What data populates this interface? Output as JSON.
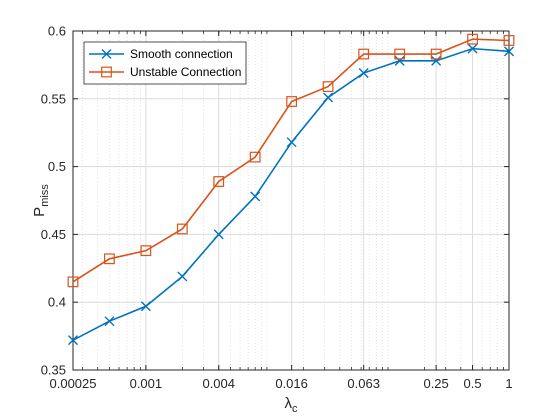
{
  "chart_data": {
    "type": "line",
    "xscale": "log",
    "xlim": [
      0.00025,
      1
    ],
    "ylim": [
      0.35,
      0.6
    ],
    "x": [
      0.00025,
      0.0005,
      0.001,
      0.002,
      0.004,
      0.008,
      0.016,
      0.032,
      0.063,
      0.125,
      0.25,
      0.5,
      1
    ],
    "xticks": [
      0.00025,
      0.001,
      0.004,
      0.016,
      0.063,
      0.25,
      0.5,
      1
    ],
    "xtick_labels": [
      "0.00025",
      "0.001",
      "0.004",
      "0.016",
      "0.063",
      "0.25",
      "0.5",
      "1"
    ],
    "yticks": [
      0.35,
      0.4,
      0.45,
      0.5,
      0.55,
      0.6
    ],
    "ytick_labels": [
      "0.35",
      "0.4",
      "0.45",
      "0.5",
      "0.55",
      "0.6"
    ],
    "xlabel_main": "λ",
    "xlabel_sub": "c",
    "ylabel_main": "P",
    "ylabel_sub": "miss",
    "grid": true,
    "legend_position": "top-left",
    "series": [
      {
        "name": "Smooth connection",
        "color": "#0072BD",
        "marker": "x",
        "values": [
          0.372,
          0.386,
          0.397,
          0.419,
          0.45,
          0.478,
          0.518,
          0.551,
          0.569,
          0.578,
          0.578,
          0.587,
          0.585
        ]
      },
      {
        "name": "Unstable Connection",
        "color": "#D95319",
        "marker": "square",
        "values": [
          0.415,
          0.432,
          0.438,
          0.454,
          0.489,
          0.507,
          0.548,
          0.559,
          0.583,
          0.583,
          0.583,
          0.594,
          0.593
        ]
      }
    ]
  }
}
